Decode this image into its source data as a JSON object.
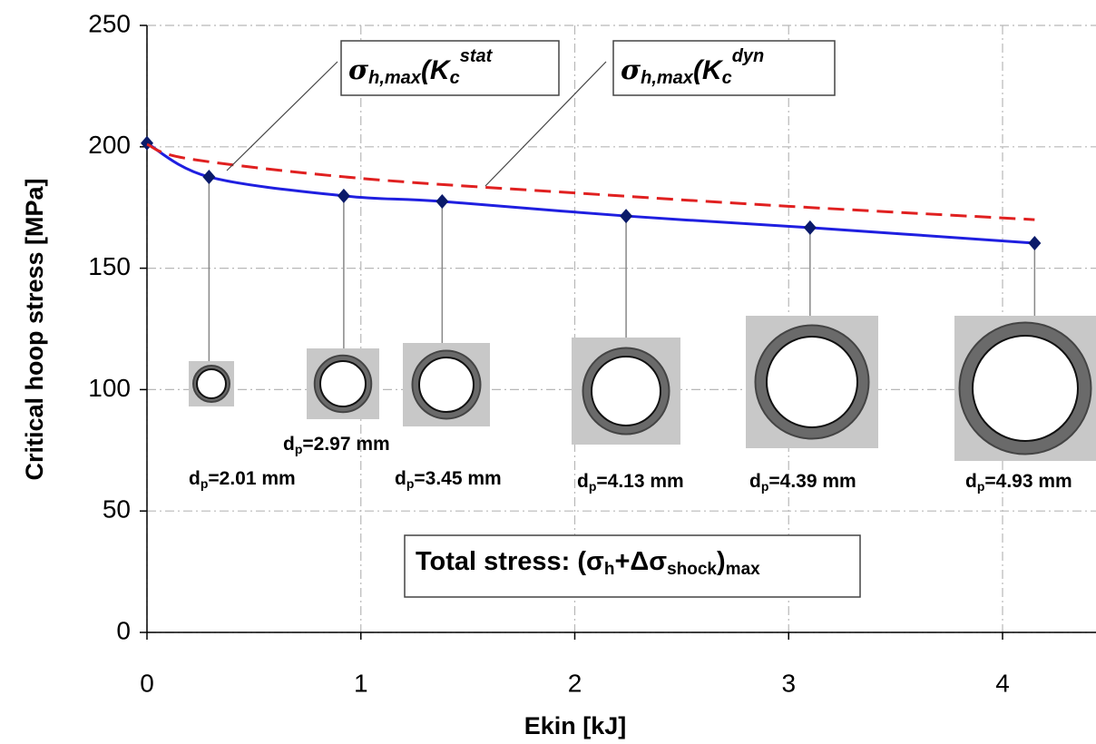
{
  "chart_data": {
    "type": "line",
    "x_label": "Ekin [kJ]",
    "y_label": "Critical hoop stress [MPa]",
    "xlim": [
      0,
      4.44
    ],
    "ylim": [
      0,
      250
    ],
    "xticks": [
      0,
      1,
      2,
      3,
      4
    ],
    "yticks": [
      0,
      50,
      100,
      150,
      200,
      250
    ],
    "grid": true,
    "series": [
      {
        "name": [
          "σ",
          "h,max",
          "(K",
          "c",
          "stat"
        ],
        "color": "#1f1fe0",
        "dashed": false,
        "markers": true,
        "x": [
          0,
          0.29,
          0.92,
          1.38,
          2.24,
          3.1,
          4.15
        ],
        "values": [
          201.5,
          187.6,
          179.8,
          177.5,
          171.5,
          166.7,
          160.3
        ]
      },
      {
        "name": [
          "σ",
          "h,max",
          "(K",
          "c",
          "dyn"
        ],
        "color": "#e02020",
        "dashed": true,
        "markers": false,
        "x": [
          0,
          0.2,
          1,
          2,
          3,
          4.15
        ],
        "values": [
          201,
          195,
          187,
          181,
          175.5,
          170
        ]
      }
    ],
    "annotations": [
      [
        "d",
        "p",
        "=2.01 mm"
      ],
      [
        "d",
        "p",
        "=2.97 mm"
      ],
      [
        "d",
        "p",
        "=3.45 mm"
      ],
      [
        "d",
        "p",
        "=4.13 mm"
      ],
      [
        "d",
        "p",
        "=4.39 mm"
      ],
      [
        "d",
        "p",
        "=4.93 mm"
      ]
    ],
    "total_stress": [
      "Total stress: (σ",
      "h",
      "+Δσ",
      "shock",
      ")",
      "max"
    ]
  }
}
